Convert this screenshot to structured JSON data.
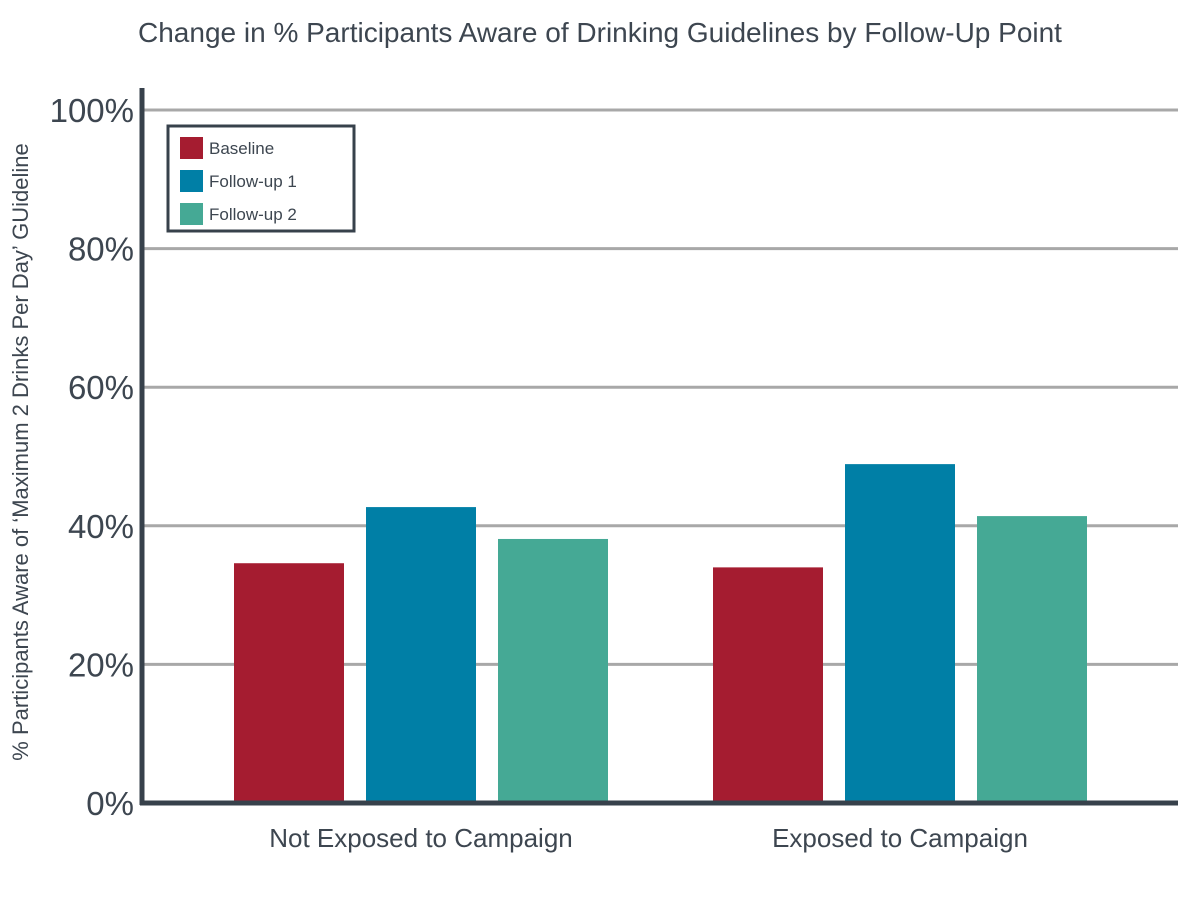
{
  "chart_data": {
    "type": "bar",
    "title": "Change in % Participants Aware of Drinking Guidelines by Follow-Up Point",
    "xlabel": "",
    "ylabel": "% Participants Aware of ‘Maximum 2 Drinks Per Day’ GUideline",
    "ylim": [
      0,
      100
    ],
    "yticks": [
      0,
      20,
      40,
      60,
      80,
      100
    ],
    "ytick_labels": [
      "0%",
      "20%",
      "40%",
      "60%",
      "80%",
      "100%"
    ],
    "categories": [
      "Not Exposed to Campaign",
      "Exposed to Campaign"
    ],
    "series": [
      {
        "name": "Baseline",
        "values": [
          34.6,
          34.0
        ],
        "color": "#a51c30"
      },
      {
        "name": "Follow-up 1",
        "values": [
          42.7,
          48.9
        ],
        "color": "#007fa6"
      },
      {
        "name": "Follow-up 2",
        "values": [
          38.1,
          41.4
        ],
        "color": "#45a995"
      }
    ],
    "grid": true,
    "legend_position": "top-left"
  }
}
